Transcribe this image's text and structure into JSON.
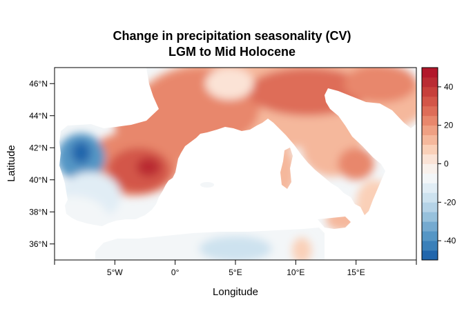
{
  "title_line1": "Change in precipitation seasonality (CV)",
  "title_line2": "LGM to Mid Holocene",
  "map": {
    "xlabel": "Longitude",
    "ylabel": "Latitude",
    "lon_range": [
      -10,
      20
    ],
    "lat_range": [
      35,
      47
    ],
    "lon_ticks": [
      {
        "v": -5,
        "label": "5°W"
      },
      {
        "v": 0,
        "label": "0°"
      },
      {
        "v": 5,
        "label": "5°E"
      },
      {
        "v": 10,
        "label": "10°E"
      },
      {
        "v": 15,
        "label": "15°E"
      }
    ],
    "lat_ticks": [
      {
        "v": 36,
        "label": "36°N"
      },
      {
        "v": 38,
        "label": "38°N"
      },
      {
        "v": 40,
        "label": "40°N"
      },
      {
        "v": 42,
        "label": "42°N"
      },
      {
        "v": 44,
        "label": "44°N"
      },
      {
        "v": 46,
        "label": "46°N"
      }
    ]
  },
  "colorbar": {
    "range": [
      -50,
      50
    ],
    "step": 5,
    "ticks": [
      {
        "v": 40,
        "label": "40"
      },
      {
        "v": 20,
        "label": "20"
      },
      {
        "v": 0,
        "label": "0"
      },
      {
        "v": -20,
        "label": "-20"
      },
      {
        "v": -40,
        "label": "-40"
      }
    ],
    "colors": [
      "#2166ac",
      "#3a80b9",
      "#5596c5",
      "#75aad0",
      "#97c1dc",
      "#b5d3e7",
      "#cde2ef",
      "#e1edf5",
      "#f3f6f8",
      "#f9f1ec",
      "#fbe3d6",
      "#fad0b8",
      "#f5b89c",
      "#efa083",
      "#e8876c",
      "#de6d58",
      "#d35648",
      "#c7403b",
      "#ba2c33",
      "#b2182b"
    ]
  },
  "blobs": [
    {
      "lon": 9,
      "lat": 45,
      "rx": 12,
      "ry": 3,
      "v": 12
    },
    {
      "lon": 2,
      "lat": 44.5,
      "rx": 5,
      "ry": 2.5,
      "v": 22
    },
    {
      "lon": -1,
      "lat": 43.5,
      "rx": 4,
      "ry": 2.5,
      "v": 20
    },
    {
      "lon": 11,
      "lat": 45.5,
      "rx": 5,
      "ry": 1.5,
      "v": 25
    },
    {
      "lon": 17,
      "lat": 46,
      "rx": 3,
      "ry": 1.2,
      "v": 22
    },
    {
      "lon": 4.5,
      "lat": 46,
      "rx": 2,
      "ry": 1,
      "v": 2
    },
    {
      "lon": -3.5,
      "lat": 41,
      "rx": 4,
      "ry": 2,
      "v": 20
    },
    {
      "lon": -3,
      "lat": 40.6,
      "rx": 2.6,
      "ry": 1.4,
      "v": 33
    },
    {
      "lon": -2.2,
      "lat": 40.8,
      "rx": 1,
      "ry": 0.6,
      "v": 40
    },
    {
      "lon": 13,
      "lat": 42,
      "rx": 2.5,
      "ry": 1.8,
      "v": 12
    },
    {
      "lon": 15,
      "lat": 41,
      "rx": 1.5,
      "ry": 1,
      "v": 20
    },
    {
      "lon": 16.5,
      "lat": 38.5,
      "rx": 1.5,
      "ry": 1.5,
      "v": 8
    },
    {
      "lon": 9,
      "lat": 40.5,
      "rx": 1,
      "ry": 1.5,
      "v": 10
    },
    {
      "lon": 14,
      "lat": 37.5,
      "rx": 1.5,
      "ry": 0.7,
      "v": 12
    },
    {
      "lon": -7.8,
      "lat": 41.4,
      "rx": 2,
      "ry": 1.5,
      "v": -40
    },
    {
      "lon": -7.8,
      "lat": 41.7,
      "rx": 0.8,
      "ry": 0.7,
      "v": -48
    },
    {
      "lon": -7,
      "lat": 39,
      "rx": 2.5,
      "ry": 1.5,
      "v": -12
    },
    {
      "lon": -8.5,
      "lat": 37.5,
      "rx": 3,
      "ry": 1.5,
      "v": -8
    },
    {
      "lon": 2,
      "lat": 35.8,
      "rx": 7,
      "ry": 1.2,
      "v": -10
    },
    {
      "lon": 5,
      "lat": 35.7,
      "rx": 3,
      "ry": 0.8,
      "v": -18
    },
    {
      "lon": -2,
      "lat": 35.3,
      "rx": 4,
      "ry": 0.6,
      "v": -8
    },
    {
      "lon": 10.5,
      "lat": 35.6,
      "rx": 0.8,
      "ry": 0.8,
      "v": 6
    }
  ]
}
